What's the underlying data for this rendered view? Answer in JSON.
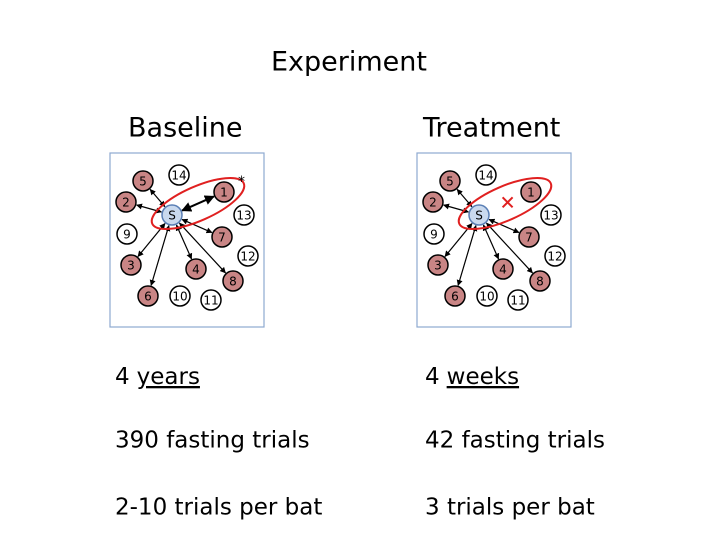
{
  "title": "Experiment",
  "panels": [
    {
      "title": "Baseline",
      "annotation": "*",
      "nodes": [
        {
          "label": "S",
          "color": "#c9d9ee"
        },
        {
          "label": "1",
          "color": "#c98585"
        },
        {
          "label": "2",
          "color": "#c98585"
        },
        {
          "label": "3",
          "color": "#c98585"
        },
        {
          "label": "4",
          "color": "#c98585"
        },
        {
          "label": "5",
          "color": "#c98585"
        },
        {
          "label": "6",
          "color": "#c98585"
        },
        {
          "label": "7",
          "color": "#c98585"
        },
        {
          "label": "8",
          "color": "#c98585"
        },
        {
          "label": "9",
          "color": "#ffffff"
        },
        {
          "label": "10",
          "color": "#ffffff"
        },
        {
          "label": "11",
          "color": "#ffffff"
        },
        {
          "label": "12",
          "color": "#ffffff"
        },
        {
          "label": "13",
          "color": "#ffffff"
        },
        {
          "label": "14",
          "color": "#ffffff"
        }
      ],
      "lines": [
        {
          "number": "4",
          "unit": "years"
        },
        {
          "text": "390 fasting trials"
        },
        {
          "text": "2-10 trials per bat"
        }
      ]
    },
    {
      "title": "Treatment",
      "nodes": [
        {
          "label": "S",
          "color": "#c9d9ee"
        },
        {
          "label": "1",
          "color": "#c98585"
        },
        {
          "label": "2",
          "color": "#c98585"
        },
        {
          "label": "3",
          "color": "#c98585"
        },
        {
          "label": "4",
          "color": "#c98585"
        },
        {
          "label": "5",
          "color": "#c98585"
        },
        {
          "label": "6",
          "color": "#c98585"
        },
        {
          "label": "7",
          "color": "#c98585"
        },
        {
          "label": "8",
          "color": "#c98585"
        },
        {
          "label": "9",
          "color": "#ffffff"
        },
        {
          "label": "10",
          "color": "#ffffff"
        },
        {
          "label": "11",
          "color": "#ffffff"
        },
        {
          "label": "12",
          "color": "#ffffff"
        },
        {
          "label": "13",
          "color": "#ffffff"
        },
        {
          "label": "14",
          "color": "#ffffff"
        }
      ],
      "lines": [
        {
          "number": "4",
          "unit": "weeks"
        },
        {
          "text": "42 fasting trials"
        },
        {
          "text": "3 trials per bat"
        }
      ]
    }
  ]
}
